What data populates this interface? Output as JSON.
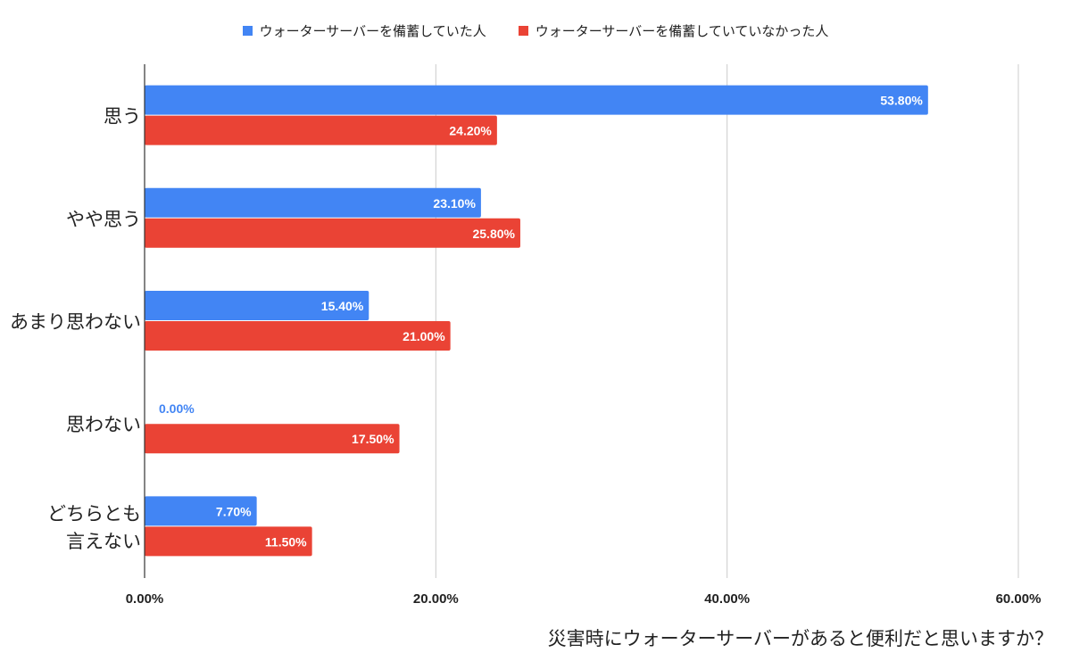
{
  "chart_data": {
    "type": "bar",
    "orientation": "horizontal",
    "title": "",
    "xlabel": "災害時にウォーターサーバーがあると便利だと思いますか？",
    "ylabel": "",
    "categories": [
      [
        "思う"
      ],
      [
        "やや思う"
      ],
      [
        "あまり思わない"
      ],
      [
        "思わない"
      ],
      [
        "どちらとも",
        "言えない"
      ]
    ],
    "series": [
      {
        "name": "ウォーターサーバーを備蓄していた人",
        "color": "#4285f4",
        "values": [
          53.8,
          23.1,
          15.4,
          0.0,
          7.7
        ],
        "labels": [
          "53.80%",
          "23.10%",
          "15.40%",
          "0.00%",
          "7.70%"
        ]
      },
      {
        "name": "ウォーターサーバーを備蓄していていなかった人",
        "color": "#ea4335",
        "values": [
          24.2,
          25.8,
          21.0,
          17.5,
          11.5
        ],
        "labels": [
          "24.20%",
          "25.80%",
          "21.00%",
          "17.50%",
          "11.50%"
        ]
      }
    ],
    "xlim": [
      0,
      60
    ],
    "xticks": [
      0,
      20,
      40,
      60
    ],
    "xtick_labels": [
      "0.00%",
      "20.00%",
      "40.00%",
      "60.00%"
    ],
    "grid": true,
    "legend_position": "top-center"
  }
}
